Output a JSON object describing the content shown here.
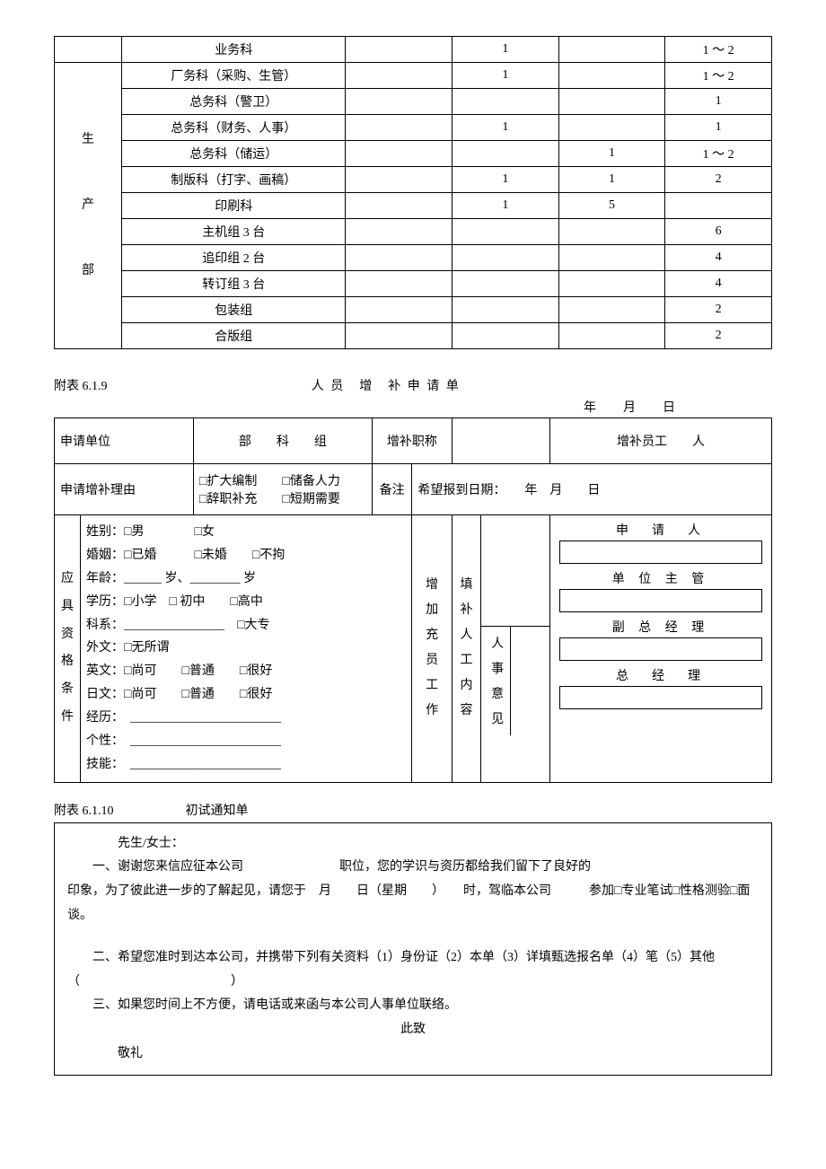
{
  "table1": {
    "group_label": "生\n\n产\n\n部",
    "rows": [
      {
        "name": "业务科",
        "c1": "",
        "c2": "1",
        "c3": "",
        "c4": "1 ～ 2",
        "group": false
      },
      {
        "name": "厂务科（采购、生管）",
        "c1": "",
        "c2": "1",
        "c3": "",
        "c4": "1 ～ 2",
        "group": true
      },
      {
        "name": "总务科（警卫）",
        "c1": "",
        "c2": "",
        "c3": "",
        "c4": "1",
        "group": true
      },
      {
        "name": "总务科（财务、人事）",
        "c1": "",
        "c2": "1",
        "c3": "",
        "c4": "1",
        "group": true
      },
      {
        "name": "总务科（储运）",
        "c1": "",
        "c2": "",
        "c3": "1",
        "c4": "1 ～ 2",
        "group": true
      },
      {
        "name": "制版科（打字、画稿）",
        "c1": "",
        "c2": "1",
        "c3": "1",
        "c4": "2",
        "group": true
      },
      {
        "name": "印刷科",
        "c1": "",
        "c2": "1",
        "c3": "5",
        "c4": "",
        "group": true
      },
      {
        "name": "主机组 3 台",
        "c1": "",
        "c2": "",
        "c3": "",
        "c4": "6",
        "group": true
      },
      {
        "name": "追印组 2 台",
        "c1": "",
        "c2": "",
        "c3": "",
        "c4": "4",
        "group": true
      },
      {
        "name": "转订组 3 台",
        "c1": "",
        "c2": "",
        "c3": "",
        "c4": "4",
        "group": true
      },
      {
        "name": "包装组",
        "c1": "",
        "c2": "",
        "c3": "",
        "c4": "2",
        "group": true
      },
      {
        "name": "合版组",
        "c1": "",
        "c2": "",
        "c3": "",
        "c4": "2",
        "group": true
      }
    ]
  },
  "form619": {
    "appendix_label": "附表 6.1.9",
    "title": "人 员　增　补 申 请 单",
    "date_label": "年　月　日",
    "row1": {
      "l1": "申请单位",
      "l2": "部　　科　　组",
      "l3": "增补职称",
      "l4": "",
      "l5": "增补员工　　人"
    },
    "row2": {
      "l1": "申请增补理由",
      "opts": "□扩大编制　　□储备人力\n□辞职补充　　□短期需要",
      "remark": "备注",
      "expect": "希望报到日期：　　年　月　　日"
    },
    "qual_label": "应具资格条件",
    "qual_lines": [
      "姓别：□男　　　　□女",
      "婚姻：□已婚　　　□未婚　　□不拘",
      "年龄：______ 岁、________ 岁",
      "学历：□小学　□ 初中　　□高中",
      "科系：________________　□大专",
      "外文：□无所谓",
      "英文：□尚可　　□普通　　□很好",
      "日文：□尚可　　□普通　　□很好",
      "经历：　________________________",
      "个性：　________________________",
      "技能：　________________________"
    ],
    "mid_labels": {
      "a": "增加充员工作",
      "b": "填补人工内容",
      "c": "人事意见"
    },
    "sign": {
      "s1": "申　请　人",
      "s2": "单 位 主 管",
      "s3": "副 总 经 理",
      "s4": "总　经　理"
    }
  },
  "form6110": {
    "appendix_label": "附表 6.1.10",
    "title": "初试通知单",
    "greeting": "先生/女士：",
    "p1a": "一、谢谢您来信应征本公司",
    "p1b": "职位，您的学识与资历都给我们留下了良好的",
    "p2": "印象，为了彼此进一步的了解起见，请您于　月　　日（星期　　）　　时，驾临本公司　　　参加□专业笔试□性格测验□面谈。",
    "p3": "二、希望您准时到达本公司，并携带下列有关资料（1）身份证（2）本单（3）详填甄选报名单（4）笔（5）其他（　　　　　　　　　　　　）",
    "p4": "三、如果您时间上不方便，请电话或来函与本公司人事单位联络。",
    "closing1": "此致",
    "closing2": "敬礼"
  }
}
